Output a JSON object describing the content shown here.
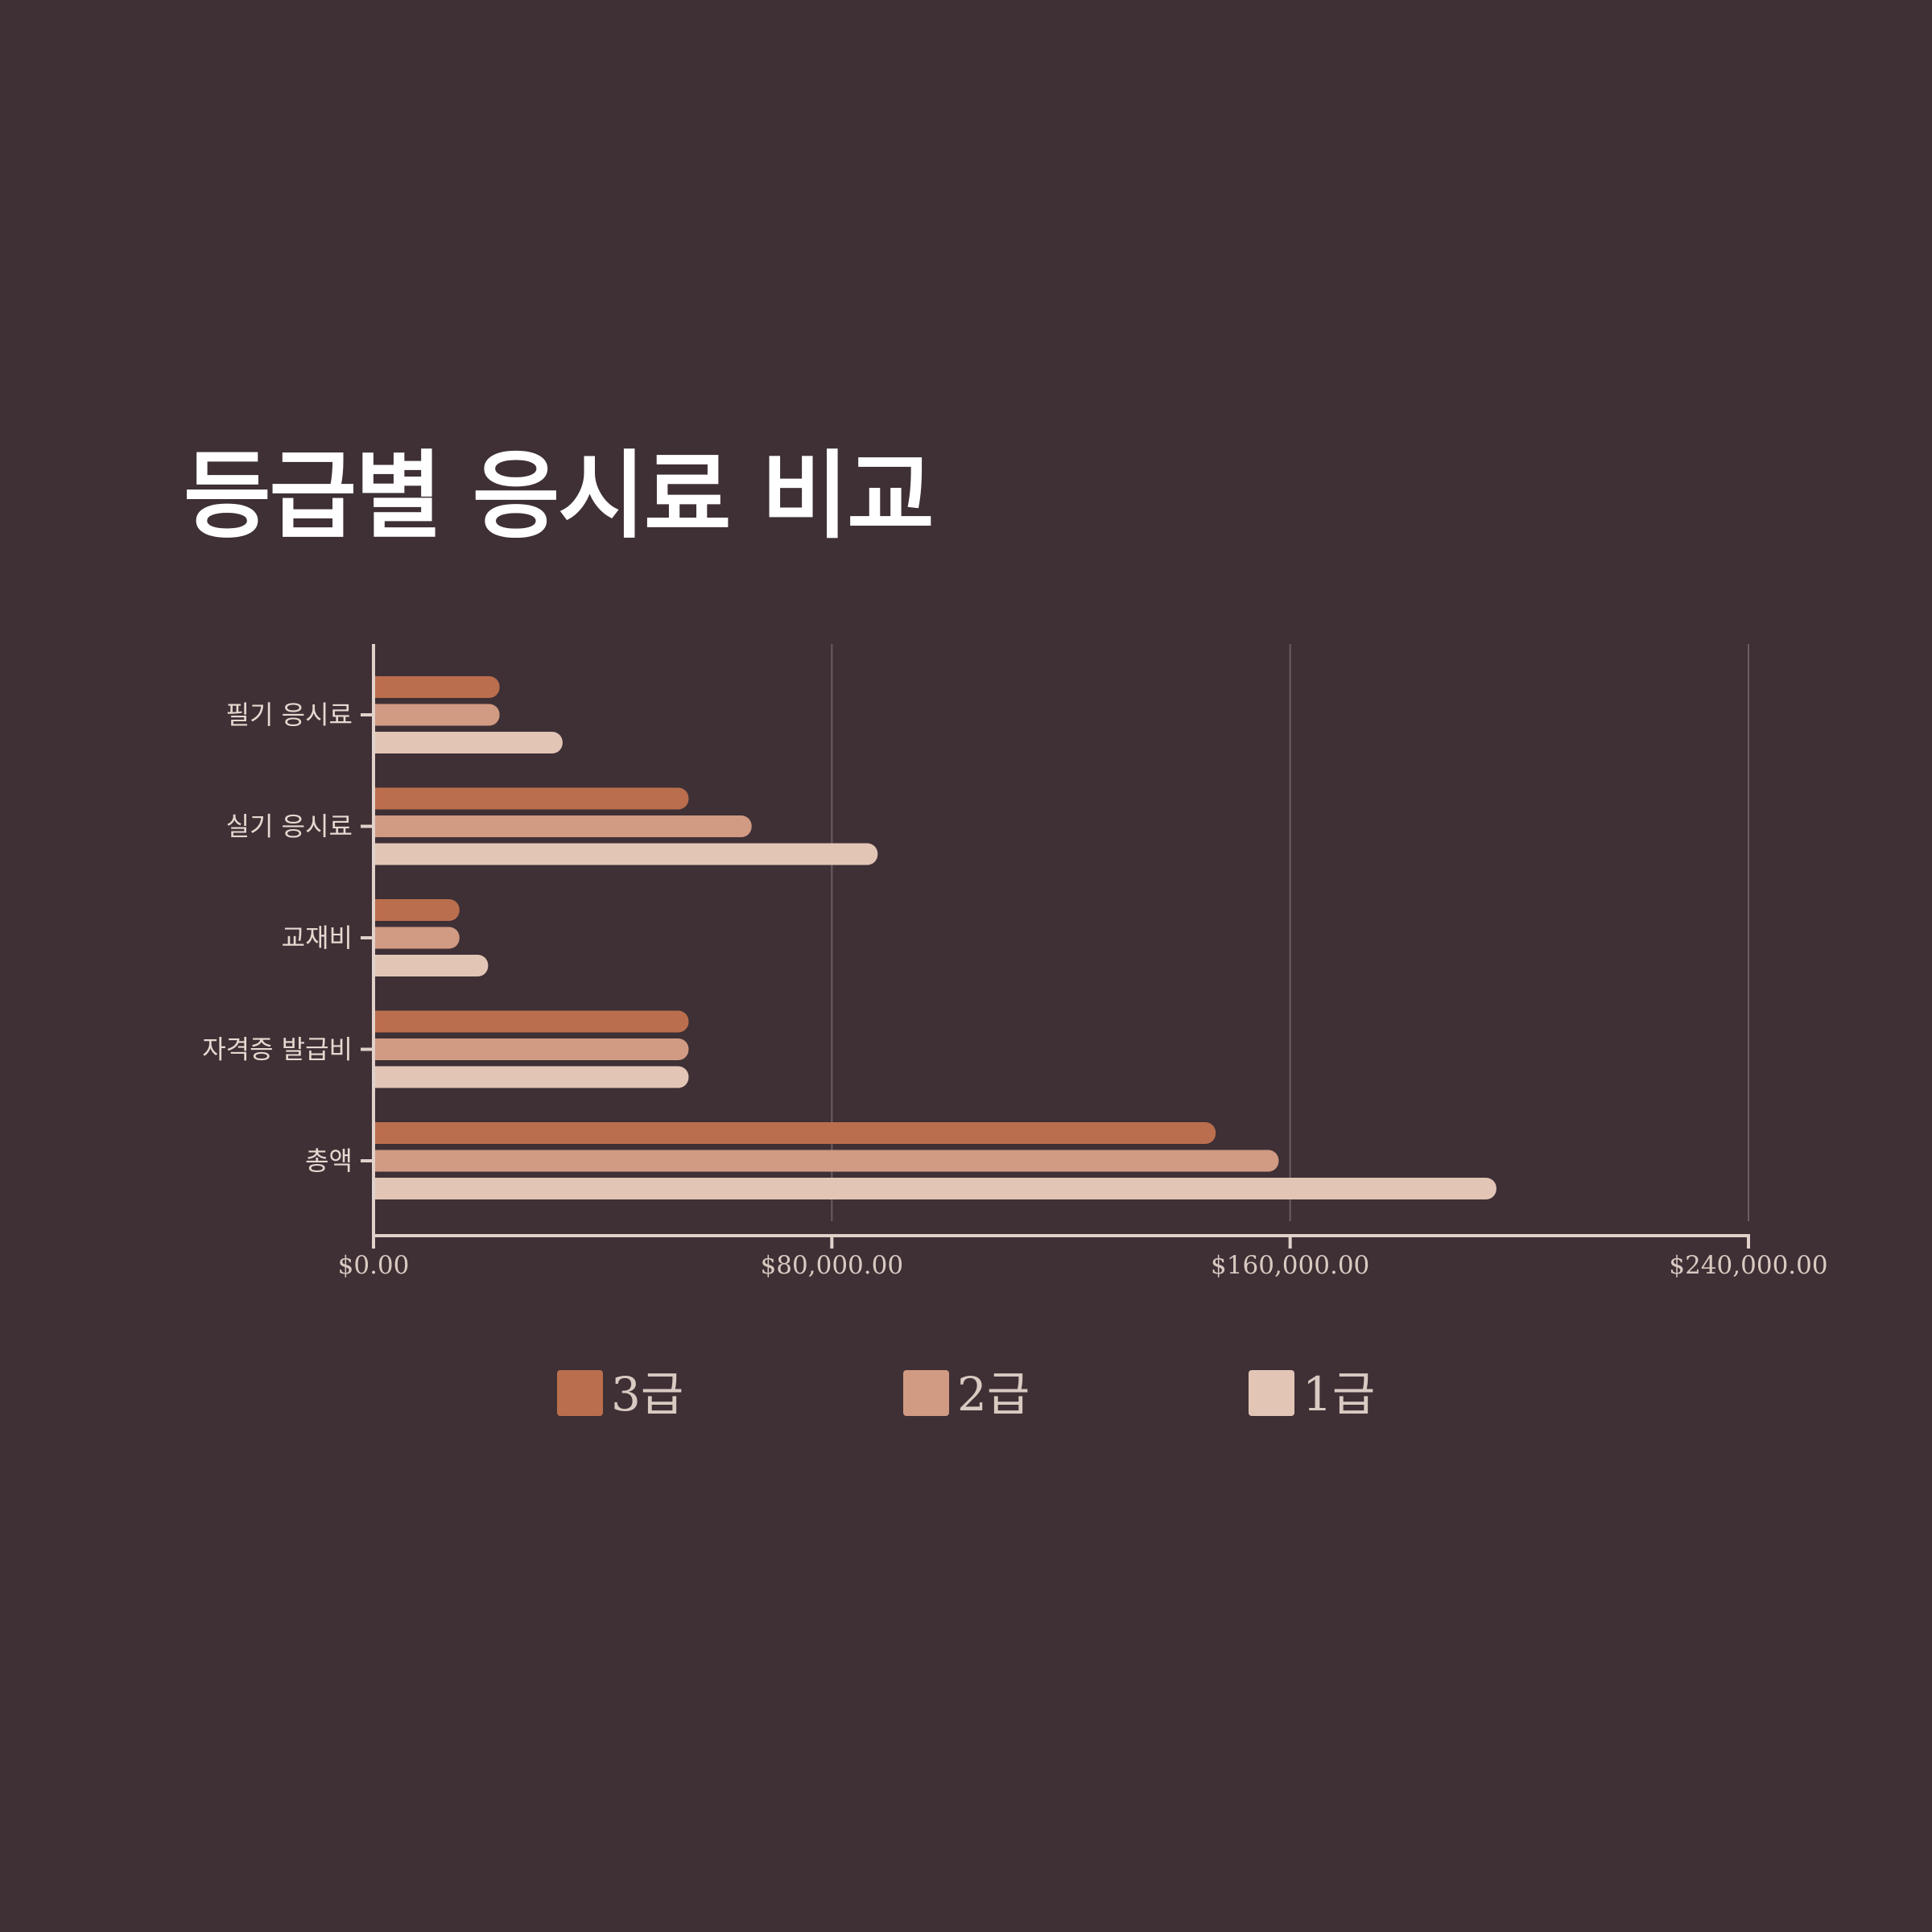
{
  "background": "#3e3035",
  "chart_data": {
    "type": "bar",
    "orientation": "horizontal",
    "title": "등급별 응시료 비교",
    "xlabel": "",
    "ylabel": "",
    "categories": [
      "필기 응시료",
      "실기 응시료",
      "교재비",
      "자격증 발급비",
      "총액"
    ],
    "series": [
      {
        "name": "3급",
        "color": "#bb6e4d",
        "values": [
          22000,
          55000,
          15000,
          55000,
          147000
        ]
      },
      {
        "name": "2급",
        "color": "#d19a82",
        "values": [
          22000,
          66000,
          15000,
          55000,
          158000
        ]
      },
      {
        "name": "1급",
        "color": "#e3c5b6",
        "values": [
          33000,
          88000,
          20000,
          55000,
          196000
        ]
      }
    ],
    "xlim": [
      0,
      240000
    ],
    "x_ticks": [
      0,
      80000,
      160000,
      240000
    ],
    "x_tick_labels": [
      "$0.00",
      "$80,000.00",
      "$160,000.00",
      "$240,000.00"
    ],
    "grid": "vertical",
    "legend": {
      "position": "bottom"
    }
  }
}
